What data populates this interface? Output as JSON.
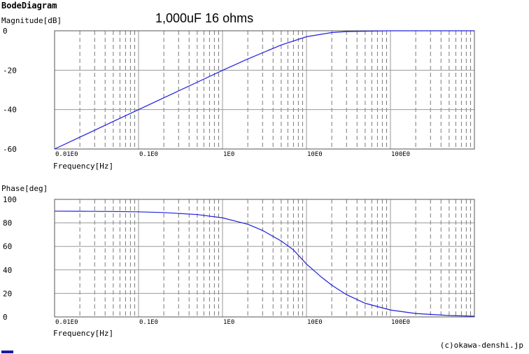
{
  "app_title": "BodeDiagram",
  "credit": "(c)okawa-denshi.jp",
  "chart_data": [
    {
      "type": "line",
      "title": "1,000uF 16 ohms",
      "ylabel": "Magnitude[dB]",
      "xlabel": "Frequency[Hz]",
      "x_scale": "log",
      "xlim": [
        0.01,
        1000
      ],
      "ylim": [
        -60,
        0
      ],
      "y_ticks": [
        0,
        -20,
        -40,
        -60
      ],
      "x_ticks": [
        {
          "value": 0.01,
          "label": "0.01E0"
        },
        {
          "value": 0.1,
          "label": "0.1E0"
        },
        {
          "value": 1,
          "label": "1E0"
        },
        {
          "value": 10,
          "label": "10E0"
        },
        {
          "value": 100,
          "label": "100E0"
        }
      ],
      "grid": true,
      "line_color": "#2020e0",
      "series": [
        {
          "x": [
            0.01,
            0.02,
            0.05,
            0.1,
            0.2,
            0.5,
            1,
            2,
            5,
            10,
            20,
            30,
            50,
            100,
            200,
            500,
            1000
          ],
          "y": [
            -60.0,
            -54.0,
            -46.0,
            -40.0,
            -34.0,
            -26.1,
            -20.1,
            -14.3,
            -7.2,
            -3.0,
            -0.9,
            -0.4,
            -0.2,
            0,
            0,
            0,
            0
          ]
        }
      ]
    },
    {
      "type": "line",
      "title": "",
      "ylabel": "Phase[deg]",
      "xlabel": "Frequency[Hz]",
      "x_scale": "log",
      "xlim": [
        0.01,
        1000
      ],
      "ylim": [
        0,
        100
      ],
      "y_ticks": [
        100,
        80,
        60,
        40,
        20,
        0
      ],
      "x_ticks": [
        {
          "value": 0.01,
          "label": "0.01E0"
        },
        {
          "value": 0.1,
          "label": "0.1E0"
        },
        {
          "value": 1,
          "label": "1E0"
        },
        {
          "value": 10,
          "label": "10E0"
        },
        {
          "value": 100,
          "label": "100E0"
        }
      ],
      "grid": true,
      "line_color": "#2020e0",
      "series": [
        {
          "x": [
            0.01,
            0.02,
            0.05,
            0.1,
            0.2,
            0.5,
            1,
            2,
            3,
            5,
            7,
            10,
            15,
            20,
            30,
            50,
            100,
            200,
            500,
            1000
          ],
          "y": [
            90.0,
            89.9,
            89.7,
            89.4,
            88.8,
            87.1,
            84.3,
            78.8,
            73.6,
            64.6,
            57.0,
            45.0,
            34.0,
            27.0,
            18.9,
            11.6,
            5.9,
            2.9,
            1.2,
            0.6
          ]
        }
      ]
    }
  ]
}
